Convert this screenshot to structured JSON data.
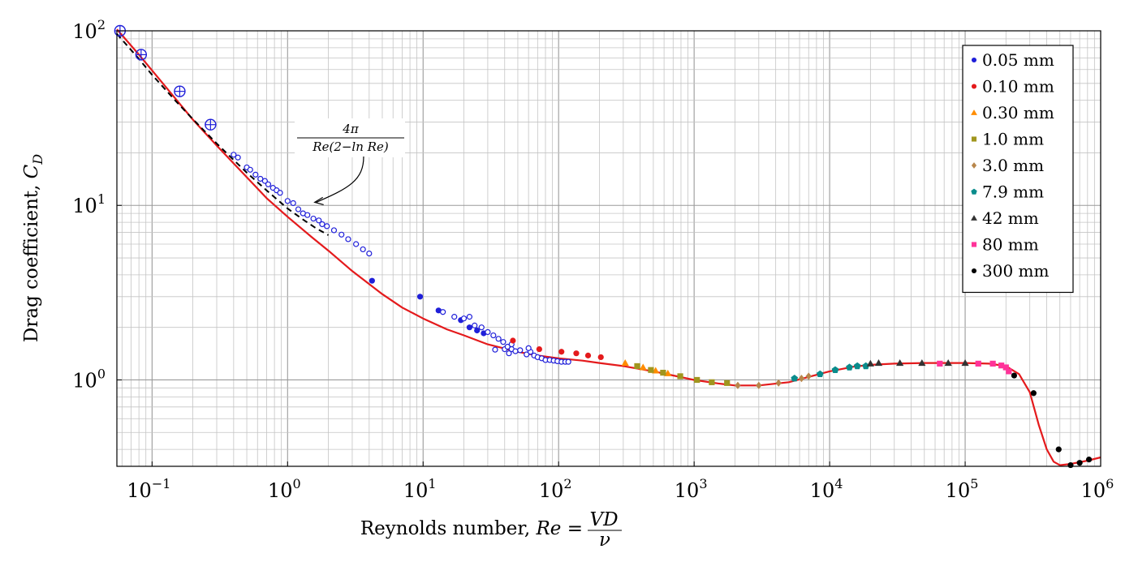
{
  "chart_data": {
    "type": "scatter",
    "x_scale": "log",
    "y_scale": "log",
    "xlim": [
      0.055,
      1000000
    ],
    "ylim": [
      0.32,
      100
    ],
    "grid": true,
    "legend_position": "top-right",
    "xlabel": "Reynolds number, Re = VD/ν",
    "xlabel_parts": {
      "text": "Reynolds number, ",
      "var": "Re",
      "eq": " = ",
      "num": "VD",
      "den": "ν"
    },
    "ylabel": "Drag coefficient, C_D",
    "ylabel_parts": {
      "text": "Drag coefficient, ",
      "var": "C",
      "sub": "D"
    },
    "x_ticks": [
      {
        "value": 0.1,
        "base": "10",
        "exp": "−1"
      },
      {
        "value": 1,
        "base": "10",
        "exp": "0"
      },
      {
        "value": 10,
        "base": "10",
        "exp": "1"
      },
      {
        "value": 100,
        "base": "10",
        "exp": "2"
      },
      {
        "value": 1000,
        "base": "10",
        "exp": "3"
      },
      {
        "value": 10000,
        "base": "10",
        "exp": "4"
      },
      {
        "value": 100000,
        "base": "10",
        "exp": "5"
      },
      {
        "value": 1000000,
        "base": "10",
        "exp": "6"
      }
    ],
    "y_ticks": [
      {
        "value": 1,
        "base": "10",
        "exp": "0"
      },
      {
        "value": 10,
        "base": "10",
        "exp": "1"
      },
      {
        "value": 100,
        "base": "10",
        "exp": "2"
      }
    ],
    "annotation": {
      "numerator": "4π",
      "denominator": "Re(2−ln Re)",
      "points_to": [
        1.5,
        10.2
      ]
    },
    "curves": [
      {
        "style": "solid",
        "color": "#e41a1c",
        "points": [
          [
            0.055,
            102
          ],
          [
            0.08,
            73
          ],
          [
            0.12,
            50
          ],
          [
            0.2,
            31
          ],
          [
            0.3,
            22
          ],
          [
            0.5,
            14.5
          ],
          [
            0.7,
            11
          ],
          [
            1,
            8.6
          ],
          [
            1.5,
            6.6
          ],
          [
            2,
            5.5
          ],
          [
            3,
            4.2
          ],
          [
            5,
            3.1
          ],
          [
            7,
            2.6
          ],
          [
            10,
            2.25
          ],
          [
            15,
            1.95
          ],
          [
            20,
            1.8
          ],
          [
            30,
            1.6
          ],
          [
            50,
            1.45
          ],
          [
            70,
            1.38
          ],
          [
            100,
            1.33
          ],
          [
            150,
            1.29
          ],
          [
            200,
            1.25
          ],
          [
            300,
            1.2
          ],
          [
            500,
            1.12
          ],
          [
            700,
            1.06
          ],
          [
            1000,
            1.0
          ],
          [
            1500,
            0.955
          ],
          [
            2000,
            0.93
          ],
          [
            3000,
            0.93
          ],
          [
            5000,
            0.97
          ],
          [
            7000,
            1.04
          ],
          [
            10000,
            1.12
          ],
          [
            15000,
            1.19
          ],
          [
            20000,
            1.22
          ],
          [
            30000,
            1.24
          ],
          [
            50000,
            1.25
          ],
          [
            100000,
            1.25
          ],
          [
            150000,
            1.24
          ],
          [
            200000,
            1.2
          ],
          [
            250000,
            1.08
          ],
          [
            300000,
            0.85
          ],
          [
            350000,
            0.55
          ],
          [
            400000,
            0.4
          ],
          [
            450000,
            0.34
          ],
          [
            500000,
            0.325
          ],
          [
            600000,
            0.33
          ],
          [
            800000,
            0.345
          ],
          [
            1000000,
            0.36
          ]
        ]
      },
      {
        "style": "dashed",
        "color": "#000000",
        "points": [
          [
            0.055,
            96
          ],
          [
            0.08,
            69
          ],
          [
            0.1,
            56
          ],
          [
            0.15,
            39.5
          ],
          [
            0.2,
            31.2
          ],
          [
            0.3,
            22.6
          ],
          [
            0.5,
            15.4
          ],
          [
            0.7,
            12.2
          ],
          [
            1,
            9.6
          ],
          [
            1.3,
            8.3
          ],
          [
            1.6,
            7.45
          ],
          [
            2,
            6.75
          ]
        ]
      }
    ],
    "series": [
      {
        "name": "0.05 mm",
        "color": "#1f1fd9",
        "marker": "circle",
        "points": [
          [
            4.2,
            3.7
          ],
          [
            9.5,
            3.0
          ],
          [
            13,
            2.5
          ],
          [
            19,
            2.2
          ],
          [
            22,
            2.0
          ],
          [
            25,
            1.92
          ],
          [
            28,
            1.85
          ]
        ]
      },
      {
        "name": "",
        "color": "#1f1fd9",
        "marker": "open-circle",
        "points": [
          [
            0.4,
            19.5
          ],
          [
            0.43,
            18.8
          ],
          [
            0.5,
            16.5
          ],
          [
            0.53,
            16
          ],
          [
            0.58,
            15
          ],
          [
            0.63,
            14.2
          ],
          [
            0.68,
            13.8
          ],
          [
            0.72,
            13.2
          ],
          [
            0.78,
            12.6
          ],
          [
            0.83,
            12.2
          ],
          [
            0.88,
            11.8
          ],
          [
            1.0,
            10.6
          ],
          [
            1.1,
            10.3
          ],
          [
            1.2,
            9.5
          ],
          [
            1.3,
            9.0
          ],
          [
            1.4,
            8.8
          ],
          [
            1.55,
            8.4
          ],
          [
            1.7,
            8.2
          ],
          [
            1.8,
            7.8
          ],
          [
            1.95,
            7.6
          ],
          [
            2.2,
            7.2
          ],
          [
            2.5,
            6.8
          ],
          [
            2.8,
            6.4
          ],
          [
            3.2,
            6.0
          ],
          [
            3.6,
            5.6
          ],
          [
            4.0,
            5.3
          ],
          [
            14,
            2.45
          ],
          [
            17,
            2.3
          ],
          [
            20,
            2.25
          ],
          [
            22,
            2.3
          ],
          [
            24,
            2.05
          ],
          [
            27,
            2.0
          ],
          [
            30,
            1.88
          ],
          [
            33,
            1.8
          ],
          [
            36,
            1.72
          ],
          [
            39,
            1.65
          ],
          [
            40,
            1.5
          ],
          [
            42,
            1.55
          ],
          [
            45,
            1.5
          ],
          [
            48,
            1.46
          ],
          [
            52,
            1.48
          ],
          [
            58,
            1.4
          ],
          [
            62,
            1.45
          ],
          [
            66,
            1.38
          ],
          [
            70,
            1.35
          ],
          [
            75,
            1.33
          ],
          [
            80,
            1.3
          ],
          [
            86,
            1.3
          ],
          [
            92,
            1.29
          ],
          [
            98,
            1.28
          ],
          [
            105,
            1.27
          ],
          [
            112,
            1.27
          ],
          [
            118,
            1.27
          ],
          [
            43,
            1.42
          ],
          [
            34,
            1.49
          ],
          [
            45,
            1.6
          ],
          [
            60,
            1.52
          ]
        ]
      },
      {
        "name": "0.10 mm",
        "color": "#e41a1c",
        "marker": "circle",
        "points": [
          [
            46,
            1.68
          ],
          [
            72,
            1.5
          ],
          [
            105,
            1.45
          ],
          [
            135,
            1.42
          ],
          [
            165,
            1.38
          ],
          [
            205,
            1.35
          ]
        ]
      },
      {
        "name": "0.30 mm",
        "color": "#ff8c00",
        "marker": "triangle",
        "points": [
          [
            310,
            1.25
          ],
          [
            420,
            1.18
          ],
          [
            520,
            1.13
          ],
          [
            640,
            1.09
          ]
        ]
      },
      {
        "name": "1.0 mm",
        "color": "#a0961e",
        "marker": "square",
        "points": [
          [
            380,
            1.2
          ],
          [
            480,
            1.14
          ],
          [
            590,
            1.1
          ],
          [
            790,
            1.05
          ],
          [
            1050,
            1.0
          ],
          [
            1350,
            0.97
          ],
          [
            1750,
            0.96
          ]
        ]
      },
      {
        "name": "3.0 mm",
        "color": "#b8864b",
        "marker": "diamond",
        "points": [
          [
            2100,
            0.93
          ],
          [
            3000,
            0.93
          ],
          [
            4200,
            0.96
          ],
          [
            6200,
            1.02
          ],
          [
            7000,
            1.05
          ]
        ]
      },
      {
        "name": "7.9 mm",
        "color": "#0a8c8c",
        "marker": "pentagon",
        "points": [
          [
            5500,
            1.02
          ],
          [
            8500,
            1.08
          ],
          [
            11000,
            1.14
          ],
          [
            14000,
            1.18
          ],
          [
            16000,
            1.2
          ],
          [
            18500,
            1.2
          ]
        ]
      },
      {
        "name": "42 mm",
        "color": "#333333",
        "marker": "triangle",
        "points": [
          [
            20000,
            1.24
          ],
          [
            23000,
            1.25
          ],
          [
            33000,
            1.25
          ],
          [
            48000,
            1.25
          ],
          [
            75000,
            1.25
          ],
          [
            100000,
            1.25
          ]
        ]
      },
      {
        "name": "80 mm",
        "color": "#ff3399",
        "marker": "square",
        "points": [
          [
            65000,
            1.24
          ],
          [
            125000,
            1.24
          ],
          [
            160000,
            1.24
          ],
          [
            185000,
            1.21
          ],
          [
            200000,
            1.18
          ],
          [
            210000,
            1.12
          ]
        ]
      },
      {
        "name": "300 mm",
        "color": "#000000",
        "marker": "circle",
        "points": [
          [
            230000,
            1.06
          ],
          [
            320000,
            0.84
          ],
          [
            490000,
            0.4
          ],
          [
            600000,
            0.325
          ],
          [
            700000,
            0.335
          ],
          [
            820000,
            0.35
          ]
        ]
      }
    ],
    "highlight_points": {
      "color": "#1f1fd9",
      "points": [
        [
          0.058,
          100
        ],
        [
          0.083,
          73
        ],
        [
          0.16,
          45
        ],
        [
          0.27,
          29
        ]
      ]
    }
  }
}
